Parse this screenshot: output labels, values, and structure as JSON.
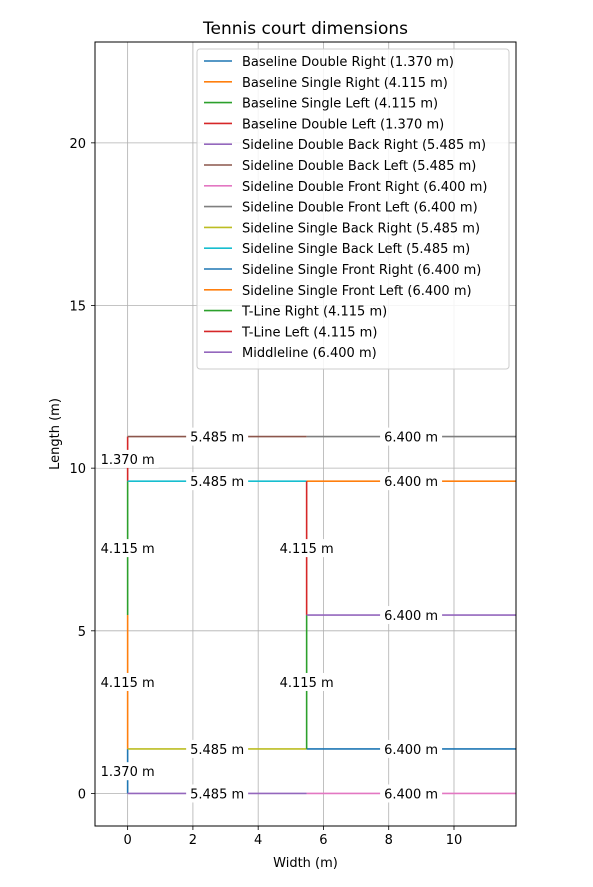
{
  "chart_data": {
    "type": "line",
    "title": "Tennis court dimensions",
    "xlabel": "Width (m)",
    "ylabel": "Length (m)",
    "xlim": [
      -1.0,
      11.9
    ],
    "ylim": [
      -1.0,
      23.1
    ],
    "xticks": [
      0,
      2,
      4,
      6,
      8,
      10
    ],
    "yticks": [
      0,
      5,
      10,
      15,
      20
    ],
    "grid": true,
    "legend_position": "top-right",
    "series": [
      {
        "name": "Baseline Double Right (1.370 m)",
        "color": "#1f77b4",
        "x": [
          0,
          0
        ],
        "y": [
          0,
          1.37
        ]
      },
      {
        "name": "Baseline Single Right (4.115 m)",
        "color": "#ff7f0e",
        "x": [
          0,
          0
        ],
        "y": [
          1.37,
          5.485
        ]
      },
      {
        "name": "Baseline Single Left (4.115 m)",
        "color": "#2ca02c",
        "x": [
          0,
          0
        ],
        "y": [
          5.485,
          9.6
        ]
      },
      {
        "name": "Baseline Double Left (1.370 m)",
        "color": "#d62728",
        "x": [
          0,
          0
        ],
        "y": [
          9.6,
          10.97
        ]
      },
      {
        "name": "Sideline Double Back Right (5.485 m)",
        "color": "#9467bd",
        "x": [
          0,
          5.485
        ],
        "y": [
          0,
          0
        ]
      },
      {
        "name": "Sideline Double Back Left (5.485 m)",
        "color": "#8c564b",
        "x": [
          0,
          5.485
        ],
        "y": [
          10.97,
          10.97
        ]
      },
      {
        "name": "Sideline Double Front Right (6.400 m)",
        "color": "#e377c2",
        "x": [
          5.485,
          11.885
        ],
        "y": [
          0,
          0
        ]
      },
      {
        "name": "Sideline Double Front Left (6.400 m)",
        "color": "#7f7f7f",
        "x": [
          5.485,
          11.885
        ],
        "y": [
          10.97,
          10.97
        ]
      },
      {
        "name": "Sideline Single Back Right (5.485 m)",
        "color": "#bcbd22",
        "x": [
          0,
          5.485
        ],
        "y": [
          1.37,
          1.37
        ]
      },
      {
        "name": "Sideline Single Back Left (5.485 m)",
        "color": "#17becf",
        "x": [
          0,
          5.485
        ],
        "y": [
          9.6,
          9.6
        ]
      },
      {
        "name": "Sideline Single Front Right (6.400 m)",
        "color": "#1f77b4",
        "x": [
          5.485,
          11.885
        ],
        "y": [
          1.37,
          1.37
        ]
      },
      {
        "name": "Sideline Single Front Left (6.400 m)",
        "color": "#ff7f0e",
        "x": [
          5.485,
          11.885
        ],
        "y": [
          9.6,
          9.6
        ]
      },
      {
        "name": "T-Line Right (4.115 m)",
        "color": "#2ca02c",
        "x": [
          5.485,
          5.485
        ],
        "y": [
          1.37,
          5.485
        ]
      },
      {
        "name": "T-Line Left (4.115 m)",
        "color": "#d62728",
        "x": [
          5.485,
          5.485
        ],
        "y": [
          5.485,
          9.6
        ]
      },
      {
        "name": "Middleline (6.400 m)",
        "color": "#9467bd",
        "x": [
          5.485,
          11.885
        ],
        "y": [
          5.485,
          5.485
        ]
      }
    ],
    "annotations": [
      {
        "text": "1.370 m",
        "x": 0,
        "y": 0.685
      },
      {
        "text": "4.115 m",
        "x": 0,
        "y": 3.4275
      },
      {
        "text": "4.115 m",
        "x": 0,
        "y": 7.5425
      },
      {
        "text": "1.370 m",
        "x": 0,
        "y": 10.285
      },
      {
        "text": "5.485 m",
        "x": 2.7425,
        "y": 0
      },
      {
        "text": "5.485 m",
        "x": 2.7425,
        "y": 10.97
      },
      {
        "text": "6.400 m",
        "x": 8.685,
        "y": 0
      },
      {
        "text": "6.400 m",
        "x": 8.685,
        "y": 10.97
      },
      {
        "text": "5.485 m",
        "x": 2.7425,
        "y": 1.37
      },
      {
        "text": "5.485 m",
        "x": 2.7425,
        "y": 9.6
      },
      {
        "text": "6.400 m",
        "x": 8.685,
        "y": 1.37
      },
      {
        "text": "6.400 m",
        "x": 8.685,
        "y": 9.6
      },
      {
        "text": "4.115 m",
        "x": 5.485,
        "y": 3.4275
      },
      {
        "text": "4.115 m",
        "x": 5.485,
        "y": 7.5425
      },
      {
        "text": "6.400 m",
        "x": 8.685,
        "y": 5.485
      }
    ]
  }
}
